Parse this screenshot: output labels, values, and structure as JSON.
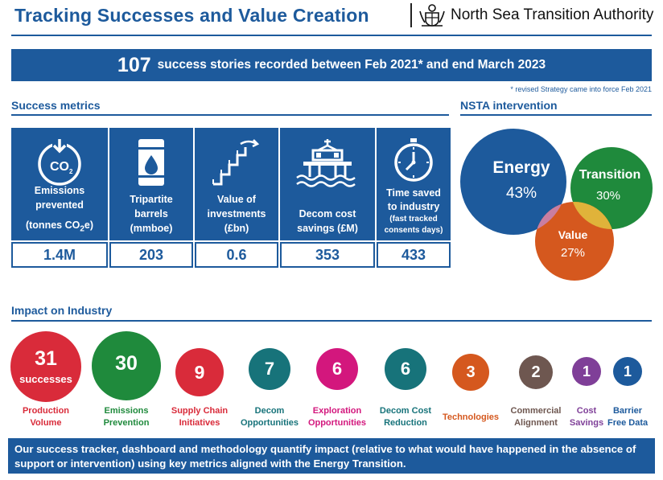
{
  "header": {
    "title": "Tracking Successes and Value Creation",
    "organisation": "North Sea Transition Authority"
  },
  "banner": {
    "count": "107",
    "text": "success stories recorded between Feb 2021* and end March 2023",
    "footnote": "* revised Strategy came into force Feb 2021"
  },
  "success_metrics": {
    "heading": "Success metrics",
    "items": [
      {
        "label_lines": [
          "Emissions",
          "prevented"
        ],
        "unit_prefix": "(tonnes CO",
        "unit_sub": "2",
        "unit_suffix": "e)",
        "value": "1.4M",
        "icon": "co2-down-arrow-icon"
      },
      {
        "label_lines": [
          "Tripartite",
          "barrels"
        ],
        "unit": "(mmboe)",
        "value": "203",
        "icon": "oil-barrel-icon"
      },
      {
        "label_lines": [
          "Value of",
          "investments"
        ],
        "unit": "(£bn)",
        "value": "0.6",
        "icon": "rising-stairs-icon"
      },
      {
        "label_lines": [
          "Decom cost"
        ],
        "unit": "savings (£M)",
        "value": "353",
        "icon": "platform-decommission-icon"
      },
      {
        "label_lines": [
          "Time saved",
          "to industry"
        ],
        "unit_lines": [
          "(fast tracked",
          "consents days)"
        ],
        "value": "433",
        "icon": "stopwatch-icon"
      }
    ]
  },
  "nsta_intervention": {
    "heading": "NSTA intervention",
    "segments": [
      {
        "name": "Energy",
        "percent": "43%",
        "color": "#1d5a9c"
      },
      {
        "name": "Transition",
        "percent": "30%",
        "color": "#1f8a3c"
      },
      {
        "name": "Value",
        "percent": "27%",
        "color": "#d5581e"
      }
    ]
  },
  "impact": {
    "heading": "Impact on Industry",
    "items": [
      {
        "count": "31",
        "sub": "successes",
        "label_lines": [
          "Production",
          "Volume"
        ],
        "color": "#d92b3a"
      },
      {
        "count": "30",
        "label_lines": [
          "Emissions",
          "Prevention"
        ],
        "color": "#1f8a3c"
      },
      {
        "count": "9",
        "label_lines": [
          "Supply Chain",
          "Initiatives"
        ],
        "color": "#d92b3a"
      },
      {
        "count": "7",
        "label_lines": [
          "Decom",
          "Opportunities"
        ],
        "color": "#17737a"
      },
      {
        "count": "6",
        "label_lines": [
          "Exploration",
          "Opportunities"
        ],
        "color": "#d3177d"
      },
      {
        "count": "6",
        "label_lines": [
          "Decom Cost",
          "Reduction"
        ],
        "color": "#17737a"
      },
      {
        "count": "3",
        "label_lines": [
          "Technologies"
        ],
        "color": "#d5581e"
      },
      {
        "count": "2",
        "label_lines": [
          "Commercial",
          "Alignment"
        ],
        "color": "#6e5750"
      },
      {
        "count": "1",
        "label_lines": [
          "Cost",
          "Savings"
        ],
        "color": "#7f3f98"
      },
      {
        "count": "1",
        "label_lines": [
          "Barrier",
          "Free Data"
        ],
        "color": "#1d5a9c"
      }
    ]
  },
  "footer": {
    "text": "Our success tracker, dashboard and methodology quantify impact (relative to what would have happened in the absence of support or intervention) using key metrics aligned with the Energy Transition."
  }
}
